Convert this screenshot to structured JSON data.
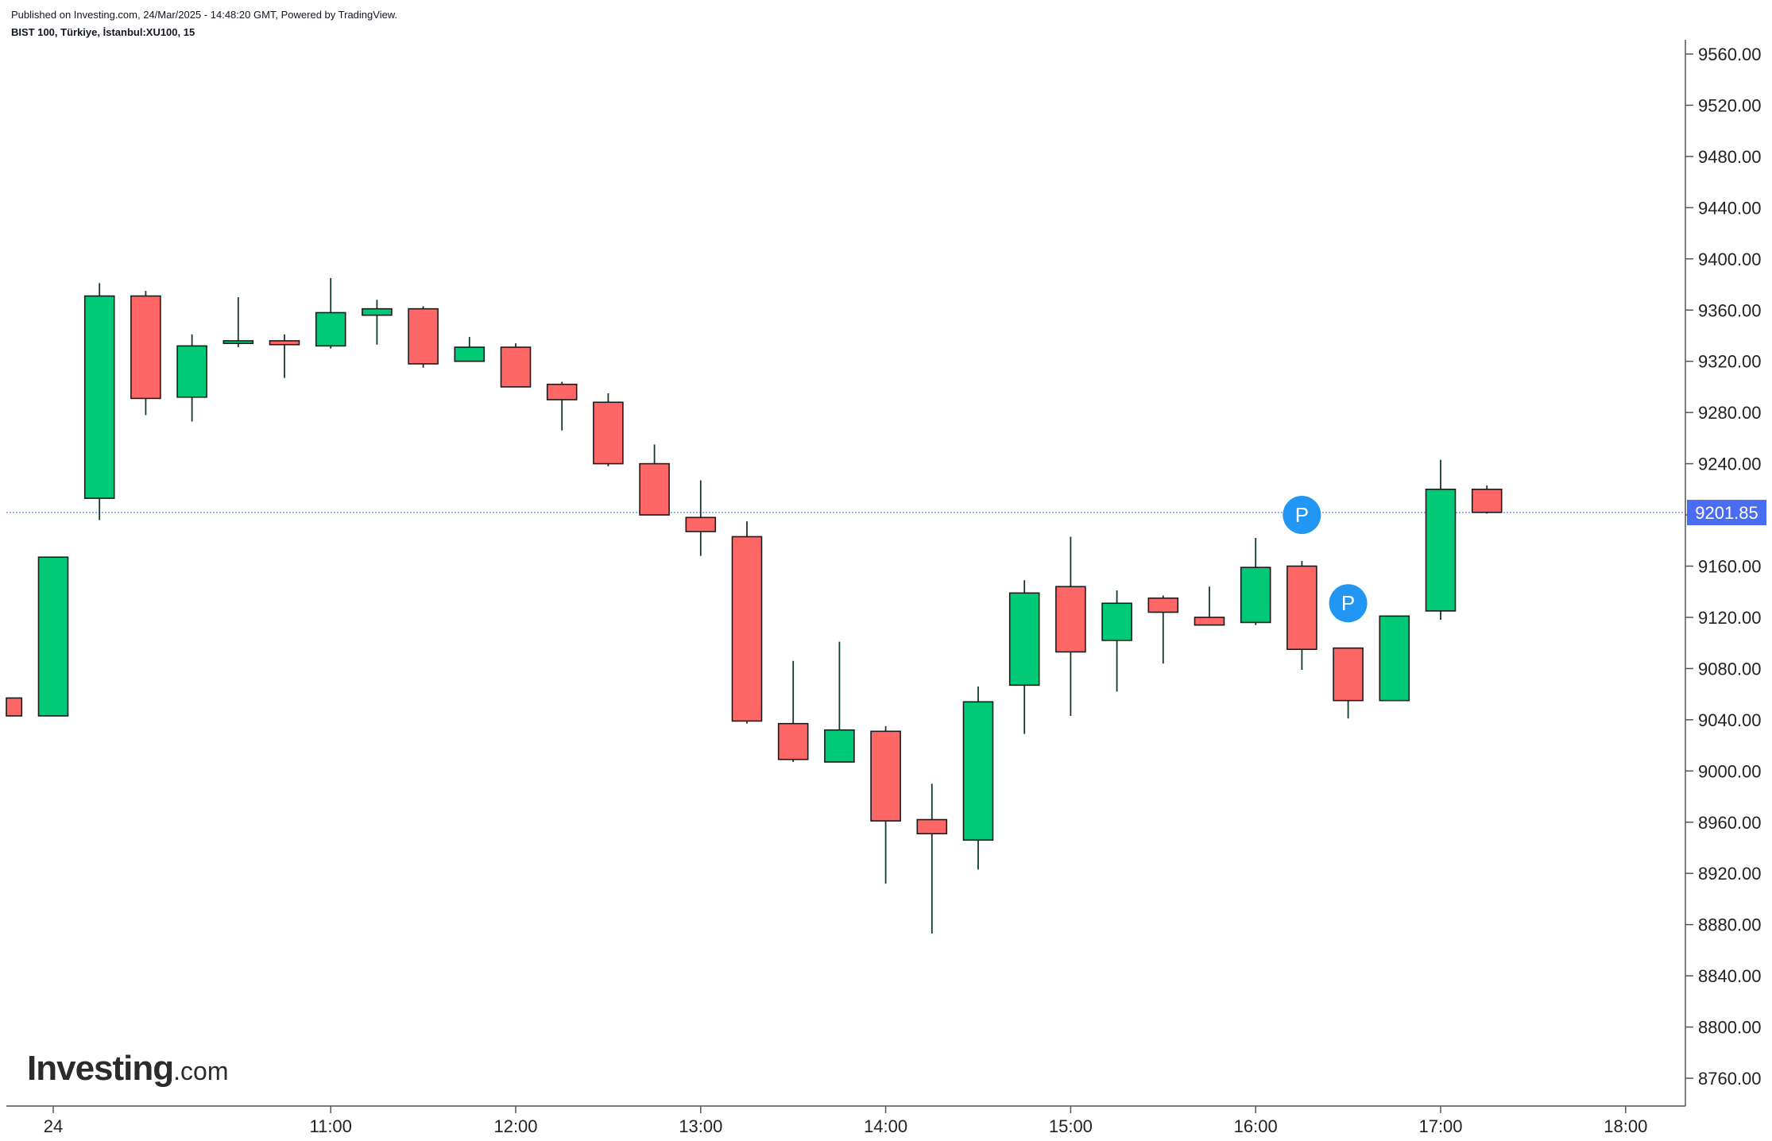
{
  "header": {
    "published": "Published on Investing.com, 24/Mar/2025 - 14:48:20 GMT, Powered by TradingView.",
    "symbol": "BIST 100, Türkiye, İstanbul:XU100, 15"
  },
  "logo": {
    "main": "Investing",
    "domain": ".com"
  },
  "colors": {
    "up": "#00c977",
    "down": "#ff6666",
    "wick": "#0f3b2b",
    "price_line": "#4a6cf0",
    "label_bg": "#4a6cf0",
    "marker": "#2196f3"
  },
  "chart_data": {
    "type": "candlestick",
    "title": "BIST 100, Türkiye, İstanbul:XU100, 15",
    "ylim": [
      8740,
      9570
    ],
    "y_ticks": [
      "9560.00",
      "9520.00",
      "9480.00",
      "9440.00",
      "9400.00",
      "9360.00",
      "9320.00",
      "9280.00",
      "9240.00",
      "9200.00",
      "9160.00",
      "9120.00",
      "9080.00",
      "9040.00",
      "9000.00",
      "8960.00",
      "8920.00",
      "8880.00",
      "8840.00",
      "8800.00",
      "8760.00"
    ],
    "x_ticks": [
      {
        "label": "24",
        "slot": 0
      },
      {
        "label": "11:00",
        "slot": 6
      },
      {
        "label": "12:00",
        "slot": 10
      },
      {
        "label": "13:00",
        "slot": 14
      },
      {
        "label": "14:00",
        "slot": 18
      },
      {
        "label": "15:00",
        "slot": 22
      },
      {
        "label": "16:00",
        "slot": 26
      },
      {
        "label": "17:00",
        "slot": 30
      },
      {
        "label": "18:00",
        "slot": 34
      }
    ],
    "current_price": 9201.85,
    "current_price_label": "9201.85",
    "candles": [
      {
        "slot": -1,
        "open": 9057,
        "high": 9057,
        "low": 9043,
        "close": 9043
      },
      {
        "slot": 0,
        "open": 9043,
        "high": 9167,
        "low": 9043,
        "close": 9167
      },
      {
        "slot": 1,
        "open": 9213,
        "high": 9381,
        "low": 9196,
        "close": 9371
      },
      {
        "slot": 2,
        "open": 9371,
        "high": 9375,
        "low": 9278,
        "close": 9291
      },
      {
        "slot": 3,
        "open": 9292,
        "high": 9341,
        "low": 9273,
        "close": 9332
      },
      {
        "slot": 4,
        "open": 9334,
        "high": 9370,
        "low": 9331,
        "close": 9336
      },
      {
        "slot": 5,
        "open": 9336,
        "high": 9341,
        "low": 9307,
        "close": 9333
      },
      {
        "slot": 6,
        "open": 9332,
        "high": 9385,
        "low": 9330,
        "close": 9358
      },
      {
        "slot": 7,
        "open": 9356,
        "high": 9368,
        "low": 9333,
        "close": 9361
      },
      {
        "slot": 8,
        "open": 9361,
        "high": 9363,
        "low": 9315,
        "close": 9318
      },
      {
        "slot": 9,
        "open": 9320,
        "high": 9339,
        "low": 9320,
        "close": 9331
      },
      {
        "slot": 10,
        "open": 9331,
        "high": 9334,
        "low": 9300,
        "close": 9300
      },
      {
        "slot": 11,
        "open": 9302,
        "high": 9304,
        "low": 9266,
        "close": 9290
      },
      {
        "slot": 12,
        "open": 9288,
        "high": 9295,
        "low": 9238,
        "close": 9240
      },
      {
        "slot": 13,
        "open": 9240,
        "high": 9255,
        "low": 9200,
        "close": 9200
      },
      {
        "slot": 14,
        "open": 9198,
        "high": 9227,
        "low": 9168,
        "close": 9187
      },
      {
        "slot": 15,
        "open": 9183,
        "high": 9195,
        "low": 9037,
        "close": 9039
      },
      {
        "slot": 16,
        "open": 9037,
        "high": 9086,
        "low": 9007,
        "close": 9009
      },
      {
        "slot": 17,
        "open": 9007,
        "high": 9101,
        "low": 9007,
        "close": 9032
      },
      {
        "slot": 18,
        "open": 9031,
        "high": 9035,
        "low": 8912,
        "close": 8961
      },
      {
        "slot": 19,
        "open": 8962,
        "high": 8990,
        "low": 8873,
        "close": 8951
      },
      {
        "slot": 20,
        "open": 8946,
        "high": 9066,
        "low": 8923,
        "close": 9054
      },
      {
        "slot": 21,
        "open": 9067,
        "high": 9149,
        "low": 9029,
        "close": 9139
      },
      {
        "slot": 22,
        "open": 9144,
        "high": 9183,
        "low": 9043,
        "close": 9093
      },
      {
        "slot": 23,
        "open": 9102,
        "high": 9141,
        "low": 9062,
        "close": 9131
      },
      {
        "slot": 24,
        "open": 9135,
        "high": 9137,
        "low": 9084,
        "close": 9124
      },
      {
        "slot": 25,
        "open": 9120,
        "high": 9144,
        "low": 9114,
        "close": 9114
      },
      {
        "slot": 26,
        "open": 9116,
        "high": 9182,
        "low": 9114,
        "close": 9159
      },
      {
        "slot": 27,
        "open": 9160,
        "high": 9164,
        "low": 9079,
        "close": 9095
      },
      {
        "slot": 28,
        "open": 9096,
        "high": 9096,
        "low": 9041,
        "close": 9055
      },
      {
        "slot": 29,
        "open": 9055,
        "high": 9121,
        "low": 9055,
        "close": 9121
      },
      {
        "slot": 30,
        "open": 9125,
        "high": 9243,
        "low": 9118,
        "close": 9220
      },
      {
        "slot": 31,
        "open": 9220,
        "high": 9223,
        "low": 9201,
        "close": 9202
      }
    ],
    "markers": [
      {
        "label": "P",
        "slot": 27.0,
        "y": 9200
      },
      {
        "label": "P",
        "slot": 28.0,
        "y": 9131
      }
    ]
  }
}
